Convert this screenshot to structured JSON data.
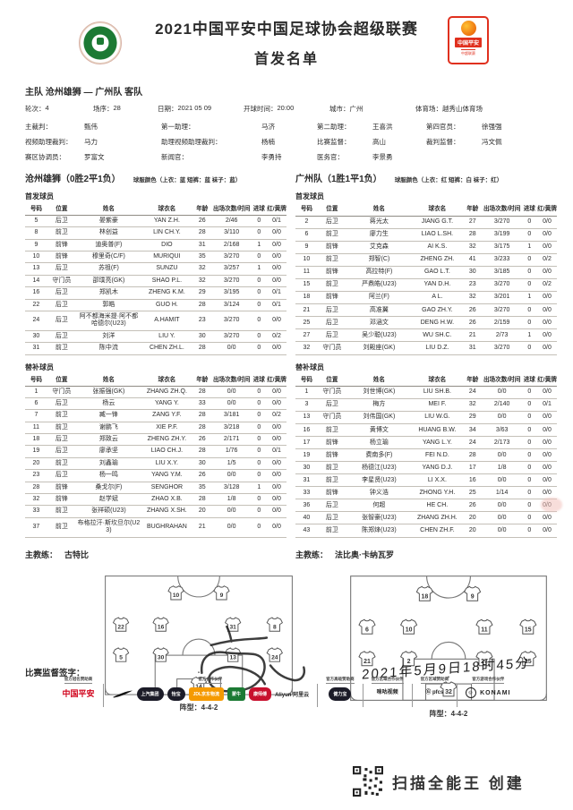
{
  "page": {
    "title_line1": "2021中国平安中国足球协会超级联赛",
    "title_line2": "首发名单",
    "matchup": "主队 沧州雄狮 — 广州队 客队",
    "scan_footer": "扫描全能王 创建",
    "sponsor_badge": {
      "brand": "中国平安",
      "sub": "中超联赛"
    }
  },
  "meta": [
    {
      "label": "轮次：",
      "value": "4"
    },
    {
      "label": "场序：",
      "value": "28"
    },
    {
      "label": "日期：",
      "value": "2021 05 09"
    },
    {
      "label": "开球时间：",
      "value": "20:00"
    },
    {
      "label": "城市：",
      "value": "广州"
    },
    {
      "label": "体育场：",
      "value": "越秀山体育场"
    }
  ],
  "officials": [
    {
      "label": "主裁判：",
      "value": "甄伟"
    },
    {
      "label": "第一助理：",
      "value": "马济"
    },
    {
      "label": "第二助理：",
      "value": "王喜洪"
    },
    {
      "label": "第四官员：",
      "value": "徐强强"
    },
    {
      "label": "视频助理裁判：",
      "value": "马力"
    },
    {
      "label": "助理视频助理裁判：",
      "value": "杨楠"
    },
    {
      "label": "比赛监督：",
      "value": "高山"
    },
    {
      "label": "裁判监督：",
      "value": "冯文佩"
    },
    {
      "label": "赛区协调员：",
      "value": "罗富文"
    },
    {
      "label": "新闻官：",
      "value": "李勇持"
    },
    {
      "label": "医务官：",
      "value": "李景勇"
    }
  ],
  "teams": {
    "home": {
      "name": "沧州雄狮（0胜2平1负）",
      "kit": "球服颜色（上衣：蓝 短裤：蓝 袜子：蓝）",
      "coach": "古特比"
    },
    "away": {
      "name": "广州队（1胜1平1负）",
      "kit": "球服颜色（上衣：红 短裤：白 袜子：红）",
      "coach": "法比奥·卡纳瓦罗"
    }
  },
  "labels": {
    "starters": "首发球员",
    "subs": "替补球员",
    "coach": "主教练：",
    "formation_home": "阵型：4-4-2",
    "formation_away": "阵型：4-4-2",
    "signature": "比赛监督签字：",
    "date_handwritten": "2021年5月9日18时45分"
  },
  "table_headers": [
    "号码",
    "位置",
    "姓名",
    "球衣名",
    "年龄",
    "出场次数/时间",
    "进球",
    "红/黄牌"
  ],
  "home_starters": [
    [
      "5",
      "后卫",
      "晏紫豪",
      "YAN Z.H.",
      "26",
      "2/46",
      "0",
      "0/1"
    ],
    [
      "8",
      "前卫",
      "林创益",
      "LIN CH.Y.",
      "28",
      "3/110",
      "0",
      "0/0"
    ],
    [
      "9",
      "前锋",
      "迪奥普(F)",
      "DIO",
      "31",
      "2/168",
      "1",
      "0/0"
    ],
    [
      "10",
      "前锋",
      "穆里奇(C/F)",
      "MURIQUI",
      "35",
      "3/270",
      "0",
      "0/0"
    ],
    [
      "13",
      "后卫",
      "苏祖(F)",
      "SUNZU",
      "32",
      "3/257",
      "1",
      "0/0"
    ],
    [
      "14",
      "守门员",
      "邵璞亮(GK)",
      "SHAO P.L.",
      "32",
      "3/270",
      "0",
      "0/0"
    ],
    [
      "16",
      "后卫",
      "郑凯木",
      "ZHENG K.M.",
      "29",
      "3/195",
      "0",
      "0/1"
    ],
    [
      "22",
      "后卫",
      "郭皓",
      "GUO H.",
      "28",
      "3/124",
      "0",
      "0/1"
    ],
    [
      "24",
      "后卫",
      "阿不都海米提·阿不都哈德尔(U23)",
      "A.HAMIT",
      "23",
      "3/270",
      "0",
      "0/0"
    ],
    [
      "30",
      "后卫",
      "刘洋",
      "LIU Y.",
      "30",
      "3/270",
      "0",
      "0/2"
    ],
    [
      "31",
      "前卫",
      "陈中流",
      "CHEN ZH.L.",
      "28",
      "0/0",
      "0",
      "0/0"
    ]
  ],
  "away_starters": [
    [
      "2",
      "后卫",
      "蒋光太",
      "JIANG G.T.",
      "27",
      "3/270",
      "0",
      "0/0"
    ],
    [
      "6",
      "前卫",
      "廖力生",
      "LIAO L.SH.",
      "28",
      "3/199",
      "0",
      "0/0"
    ],
    [
      "9",
      "前锋",
      "艾克森",
      "AI K.S.",
      "32",
      "3/175",
      "1",
      "0/0"
    ],
    [
      "10",
      "前卫",
      "郑智(C)",
      "ZHENG ZH.",
      "41",
      "3/233",
      "0",
      "0/2"
    ],
    [
      "11",
      "前锋",
      "高拉特(F)",
      "GAO L.T.",
      "30",
      "3/185",
      "0",
      "0/0"
    ],
    [
      "15",
      "前卫",
      "严鼎皓(U23)",
      "YAN D.H.",
      "23",
      "3/270",
      "0",
      "0/2"
    ],
    [
      "18",
      "前锋",
      "阿兰(F)",
      "A L.",
      "32",
      "3/201",
      "1",
      "0/0"
    ],
    [
      "21",
      "后卫",
      "高准翼",
      "GAO ZH.Y.",
      "26",
      "3/270",
      "0",
      "0/0"
    ],
    [
      "25",
      "后卫",
      "邓涵文",
      "DENG H.W.",
      "26",
      "2/159",
      "0",
      "0/0"
    ],
    [
      "27",
      "后卫",
      "吴少聪(U23)",
      "WU SH.C.",
      "21",
      "2/73",
      "1",
      "0/0"
    ],
    [
      "32",
      "守门员",
      "刘殿座(GK)",
      "LIU D.Z.",
      "31",
      "3/270",
      "0",
      "0/0"
    ]
  ],
  "home_subs": [
    [
      "1",
      "守门员",
      "张振强(GK)",
      "ZHANG ZH.Q.",
      "28",
      "0/0",
      "0",
      "0/0"
    ],
    [
      "6",
      "后卫",
      "杨云",
      "YANG Y.",
      "33",
      "0/0",
      "0",
      "0/0"
    ],
    [
      "7",
      "前卫",
      "臧一锋",
      "ZANG Y.F.",
      "28",
      "3/181",
      "0",
      "0/2"
    ],
    [
      "11",
      "前卫",
      "谢鹏飞",
      "XIE P.F.",
      "28",
      "3/218",
      "0",
      "0/0"
    ],
    [
      "18",
      "后卫",
      "郑致云",
      "ZHENG ZH.Y.",
      "26",
      "2/171",
      "0",
      "0/0"
    ],
    [
      "19",
      "后卫",
      "廖承坚",
      "LIAO CH.J.",
      "28",
      "1/76",
      "0",
      "0/1"
    ],
    [
      "20",
      "前卫",
      "刘鑫瑜",
      "LIU X.Y.",
      "30",
      "1/5",
      "0",
      "0/0"
    ],
    [
      "23",
      "后卫",
      "杨一鸣",
      "YANG Y.M.",
      "26",
      "0/0",
      "0",
      "0/0"
    ],
    [
      "28",
      "前锋",
      "桑戈尔(F)",
      "SENGHOR",
      "35",
      "3/128",
      "1",
      "0/0"
    ],
    [
      "32",
      "前锋",
      "赵学斌",
      "ZHAO X.B.",
      "28",
      "1/8",
      "0",
      "0/0"
    ],
    [
      "33",
      "前卫",
      "张祥硕(U23)",
      "ZHANG X.SH.",
      "20",
      "0/0",
      "0",
      "0/0"
    ],
    [
      "37",
      "前卫",
      "布格拉汗·斯坎旦尔(U23)",
      "BUGHRAHAN",
      "21",
      "0/0",
      "0",
      "0/0"
    ]
  ],
  "away_subs": [
    [
      "1",
      "守门员",
      "刘世博(GK)",
      "LIU SH.B.",
      "24",
      "0/0",
      "0",
      "0/0"
    ],
    [
      "3",
      "后卫",
      "梅方",
      "MEI F.",
      "32",
      "2/140",
      "0",
      "0/1"
    ],
    [
      "13",
      "守门员",
      "刘伟国(GK)",
      "LIU W.G.",
      "29",
      "0/0",
      "0",
      "0/0"
    ],
    [
      "16",
      "前卫",
      "黄博文",
      "HUANG B.W.",
      "34",
      "3/63",
      "0",
      "0/0"
    ],
    [
      "17",
      "前锋",
      "杨立瑜",
      "YANG L.Y.",
      "24",
      "2/173",
      "0",
      "0/0"
    ],
    [
      "19",
      "前锋",
      "费南多(F)",
      "FEI N.D.",
      "28",
      "0/0",
      "0",
      "0/0"
    ],
    [
      "30",
      "前卫",
      "杨德江(U23)",
      "YANG D.J.",
      "17",
      "1/8",
      "0",
      "0/0"
    ],
    [
      "31",
      "前卫",
      "李星贤(U23)",
      "LI X.X.",
      "16",
      "0/0",
      "0",
      "0/0"
    ],
    [
      "33",
      "前锋",
      "钟义浩",
      "ZHONG Y.H.",
      "25",
      "1/14",
      "0",
      "0/0"
    ],
    [
      "36",
      "后卫",
      "何超",
      "HE CH.",
      "26",
      "0/0",
      "0",
      "0/0"
    ],
    [
      "40",
      "后卫",
      "张智豪(U23)",
      "ZHANG ZH.H.",
      "20",
      "0/0",
      "0",
      "0/0"
    ],
    [
      "43",
      "前卫",
      "陈郑烽(U23)",
      "CHEN ZH.F.",
      "20",
      "0/0",
      "0",
      "0/0"
    ]
  ],
  "formations": {
    "home": {
      "lines": [
        [
          10,
          9
        ],
        [
          22,
          16,
          31,
          8
        ],
        [
          5,
          30,
          13,
          24
        ],
        [
          14
        ]
      ]
    },
    "away": {
      "lines": [
        [
          18,
          9
        ],
        [
          6,
          10,
          11,
          15
        ],
        [
          21,
          2,
          27,
          25
        ],
        [
          32
        ]
      ]
    }
  },
  "sponsors": {
    "groups": [
      {
        "caption": "官方冠名赞助商",
        "items": [
          {
            "kind": "pingan",
            "label": "中国平安"
          }
        ]
      },
      {
        "caption": "官方合作伙伴",
        "items": [
          {
            "kind": "swoosh",
            "label": "NIKE"
          },
          {
            "kind": "pill-dark",
            "label": "上汽集团"
          },
          {
            "kind": "pill-dark",
            "label": "怡宝"
          },
          {
            "kind": "pill-orange",
            "label": "JDL京东物流"
          },
          {
            "kind": "pill-green",
            "label": "蒙牛"
          },
          {
            "kind": "pill-red",
            "label": "康师傅"
          },
          {
            "kind": "text",
            "label": "Aliyun 阿里云"
          }
        ]
      },
      {
        "caption": "官方高级赞助商",
        "items": [
          {
            "kind": "pill-dark",
            "label": "健力宝"
          }
        ]
      },
      {
        "caption": "官方区域合作伙伴",
        "items": [
          {
            "kind": "text",
            "label": "咪咕视频"
          }
        ]
      },
      {
        "caption": "官方区域赞助商",
        "items": [
          {
            "kind": "text",
            "label": "Ⓖ pfcs"
          }
        ]
      },
      {
        "caption": "官方游戏合作伙伴",
        "items": [
          {
            "kind": "konami",
            "label": "KONAMI"
          }
        ]
      }
    ]
  }
}
